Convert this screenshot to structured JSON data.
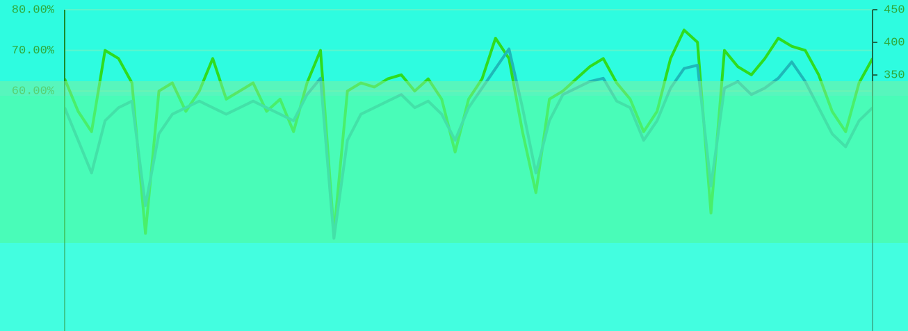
{
  "chart_data": {
    "type": "line",
    "x": [
      0,
      1,
      2,
      3,
      4,
      5,
      6,
      7,
      8,
      9,
      10,
      11,
      12,
      13,
      14,
      15,
      16,
      17,
      18,
      19,
      20,
      21,
      22,
      23,
      24,
      25,
      26,
      27,
      28,
      29,
      30,
      31,
      32,
      33,
      34,
      35,
      36,
      37,
      38,
      39,
      40,
      41,
      42,
      43,
      44,
      45,
      46,
      47,
      48,
      49,
      50,
      51,
      52,
      53,
      54,
      55,
      56,
      57,
      58,
      59,
      60
    ],
    "xlim": [
      0,
      60
    ],
    "ylim": [
      1,
      80
    ],
    "yticks": [
      {
        "value": 60,
        "label": "60.00%"
      },
      {
        "value": 70,
        "label": "70.00%"
      },
      {
        "value": 80,
        "label": "80.00%"
      }
    ],
    "y2lim": [
      -42,
      450
    ],
    "y2ticks": [
      350,
      400,
      450
    ],
    "grid": true,
    "series": [
      {
        "color": "#2fdc1e",
        "values": [
          63,
          55,
          50,
          70,
          68,
          62,
          25,
          60,
          62,
          55,
          60,
          68,
          58,
          60,
          62,
          55,
          58,
          50,
          62,
          70,
          25,
          60,
          62,
          61,
          63,
          64,
          60,
          63,
          58,
          45,
          58,
          63,
          73,
          68,
          50,
          35,
          58,
          60,
          63,
          66,
          68,
          62,
          58,
          50,
          55,
          68,
          75,
          72,
          30,
          70,
          66,
          64,
          68,
          73,
          71,
          70,
          64,
          55,
          50,
          62,
          68
        ]
      },
      {
        "color": "#1fb8b8",
        "axis": "y2",
        "values": [
          300,
          250,
          200,
          280,
          300,
          310,
          150,
          260,
          290,
          300,
          310,
          300,
          290,
          300,
          310,
          300,
          290,
          280,
          320,
          345,
          100,
          250,
          290,
          300,
          310,
          320,
          300,
          310,
          290,
          250,
          300,
          330,
          360,
          390,
          300,
          200,
          280,
          320,
          330,
          340,
          345,
          310,
          300,
          250,
          280,
          330,
          360,
          365,
          180,
          330,
          340,
          320,
          330,
          345,
          370,
          340,
          300,
          260,
          240,
          280,
          300
        ]
      }
    ]
  }
}
